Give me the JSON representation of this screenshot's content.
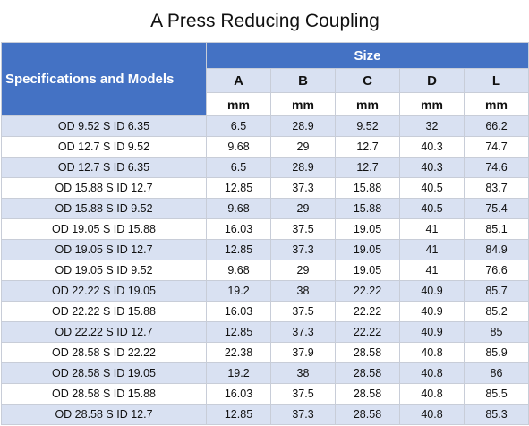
{
  "title": "A Press Reducing Coupling",
  "header": {
    "spec_label": "Specifications and Models",
    "size_label": "Size",
    "columns": [
      "A",
      "B",
      "C",
      "D",
      "L"
    ],
    "units": [
      "mm",
      "mm",
      "mm",
      "mm",
      "mm"
    ]
  },
  "rows": [
    {
      "spec": "OD 9.52 S ID 6.35",
      "A": "6.5",
      "B": "28.9",
      "C": "9.52",
      "D": "32",
      "L": "66.2"
    },
    {
      "spec": "OD 12.7 S ID 9.52",
      "A": "9.68",
      "B": "29",
      "C": "12.7",
      "D": "40.3",
      "L": "74.7"
    },
    {
      "spec": "OD 12.7 S ID 6.35",
      "A": "6.5",
      "B": "28.9",
      "C": "12.7",
      "D": "40.3",
      "L": "74.6"
    },
    {
      "spec": "OD 15.88 S ID 12.7",
      "A": "12.85",
      "B": "37.3",
      "C": "15.88",
      "D": "40.5",
      "L": "83.7"
    },
    {
      "spec": "OD 15.88 S ID 9.52",
      "A": "9.68",
      "B": "29",
      "C": "15.88",
      "D": "40.5",
      "L": "75.4"
    },
    {
      "spec": "OD 19.05 S ID 15.88",
      "A": "16.03",
      "B": "37.5",
      "C": "19.05",
      "D": "41",
      "L": "85.1"
    },
    {
      "spec": "OD 19.05 S ID 12.7",
      "A": "12.85",
      "B": "37.3",
      "C": "19.05",
      "D": "41",
      "L": "84.9"
    },
    {
      "spec": "OD 19.05 S ID 9.52",
      "A": "9.68",
      "B": "29",
      "C": "19.05",
      "D": "41",
      "L": "76.6"
    },
    {
      "spec": "OD 22.22 S ID 19.05",
      "A": "19.2",
      "B": "38",
      "C": "22.22",
      "D": "40.9",
      "L": "85.7"
    },
    {
      "spec": "OD 22.22 S ID 15.88",
      "A": "16.03",
      "B": "37.5",
      "C": "22.22",
      "D": "40.9",
      "L": "85.2"
    },
    {
      "spec": "OD 22.22 S ID 12.7",
      "A": "12.85",
      "B": "37.3",
      "C": "22.22",
      "D": "40.9",
      "L": "85"
    },
    {
      "spec": "OD 28.58 S ID 22.22",
      "A": "22.38",
      "B": "37.9",
      "C": "28.58",
      "D": "40.8",
      "L": "85.9"
    },
    {
      "spec": "OD 28.58 S ID 19.05",
      "A": "19.2",
      "B": "38",
      "C": "28.58",
      "D": "40.8",
      "L": "86"
    },
    {
      "spec": "OD 28.58 S ID 15.88",
      "A": "16.03",
      "B": "37.5",
      "C": "28.58",
      "D": "40.8",
      "L": "85.5"
    },
    {
      "spec": "OD 28.58 S ID 12.7",
      "A": "12.85",
      "B": "37.3",
      "C": "28.58",
      "D": "40.8",
      "L": "85.3"
    }
  ]
}
